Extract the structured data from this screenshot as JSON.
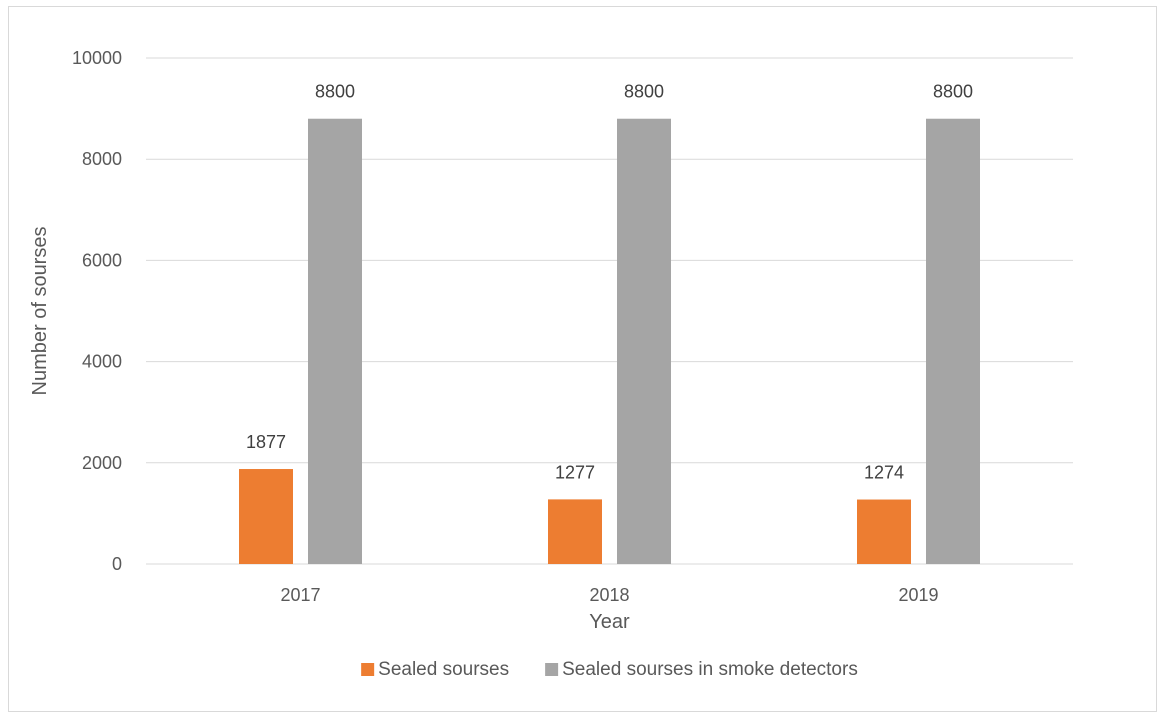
{
  "chart_data": {
    "type": "bar",
    "title": "",
    "xlabel": "Year",
    "ylabel": "Number of sourses",
    "categories": [
      "2017",
      "2018",
      "2019"
    ],
    "series": [
      {
        "name": "Sealed sourses",
        "values": [
          1877,
          1277,
          1274
        ],
        "color": "#ED7D31"
      },
      {
        "name": "Sealed sourses in smoke detectors",
        "values": [
          8800,
          8800,
          8800
        ],
        "color": "#A5A5A5"
      }
    ],
    "ylim": [
      0,
      10000
    ],
    "yticks": [
      0,
      2000,
      4000,
      6000,
      8000,
      10000
    ],
    "grid": true,
    "legend_position": "bottom",
    "data_labels": true
  }
}
